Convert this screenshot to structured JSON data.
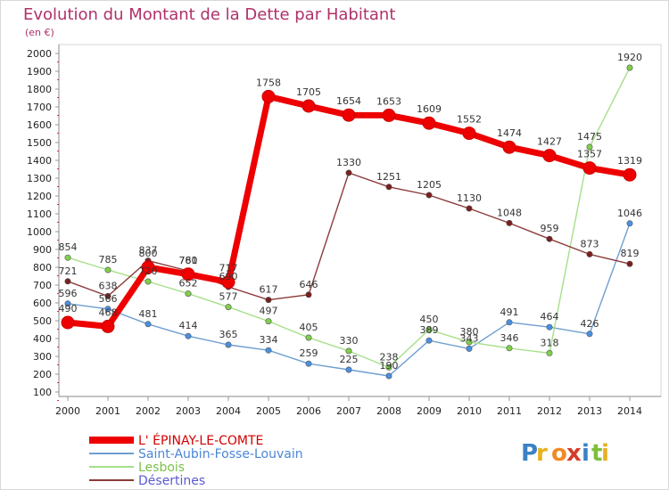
{
  "chart_data": {
    "type": "line",
    "title": "Evolution du Montant de la Dette par Habitant",
    "subtitle": "(en €)",
    "xlabel": "",
    "ylabel": "",
    "ylim": [
      100,
      2000
    ],
    "y_ticks": [
      100,
      200,
      300,
      400,
      500,
      600,
      700,
      800,
      900,
      1000,
      1100,
      1200,
      1300,
      1400,
      1500,
      1600,
      1700,
      1800,
      1900,
      2000
    ],
    "categories": [
      "2000",
      "2001",
      "2002",
      "2003",
      "2004",
      "2005",
      "2006",
      "2007",
      "2008",
      "2009",
      "2010",
      "2011",
      "2012",
      "2013",
      "2014"
    ],
    "grid": false,
    "legend_position": "bottom-left",
    "series": [
      {
        "name": "L' ÉPINAY-LE-COMTE",
        "color": "#ee0000",
        "marker_color": "#ee0000",
        "values": [
          490,
          468,
          800,
          761,
          717,
          1758,
          1705,
          1654,
          1653,
          1609,
          1552,
          1474,
          1427,
          1357,
          1319
        ],
        "labels": [
          "490",
          "468",
          "800",
          "761",
          "717",
          "1758",
          "1705",
          "1654",
          "1653",
          "1609",
          "1552",
          "1474",
          "1427",
          "1357",
          "1319"
        ]
      },
      {
        "name": "Saint-Aubin-Fosse-Louvain",
        "color": "#6f9fd0",
        "marker_color": "#4a90e2",
        "values": [
          596,
          566,
          481,
          414,
          365,
          334,
          259,
          225,
          190,
          389,
          343,
          491,
          464,
          426,
          1046
        ],
        "labels": [
          "596",
          "566",
          "481",
          "414",
          "365",
          "334",
          "259",
          "225",
          "190",
          "389",
          "343",
          "491",
          "464",
          "426",
          "1046"
        ]
      },
      {
        "name": "Lesbois",
        "color": "#a6e08a",
        "marker_color": "#7fd04a",
        "values": [
          854,
          785,
          720,
          652,
          577,
          497,
          405,
          330,
          238,
          450,
          380,
          346,
          318,
          1475,
          1920
        ],
        "labels": [
          "854",
          "785",
          "720",
          "652",
          "577",
          "497",
          "405",
          "330",
          "238",
          "450",
          "380",
          "346",
          "318",
          "1475",
          "1920"
        ]
      },
      {
        "name": "Désertines",
        "color": "#8b3a3a",
        "marker_color": "#7a1f1f",
        "values": [
          721,
          638,
          837,
          780,
          690,
          617,
          646,
          1330,
          1251,
          1205,
          1130,
          1048,
          959,
          873,
          819
        ],
        "labels": [
          "721",
          "638",
          "837",
          "780",
          "690",
          "617",
          "646",
          "1330",
          "1251",
          "1205",
          "1130",
          "1048",
          "959",
          "873",
          "819"
        ]
      }
    ]
  },
  "brand": {
    "letters": [
      "P",
      "r",
      "o",
      "x",
      "i",
      "t",
      "i"
    ],
    "colors": [
      "#3b82c4",
      "#e8b020",
      "#f08a24",
      "#d43d2a",
      "#3b82c4",
      "#7cbf3a",
      "#e8b020"
    ]
  }
}
